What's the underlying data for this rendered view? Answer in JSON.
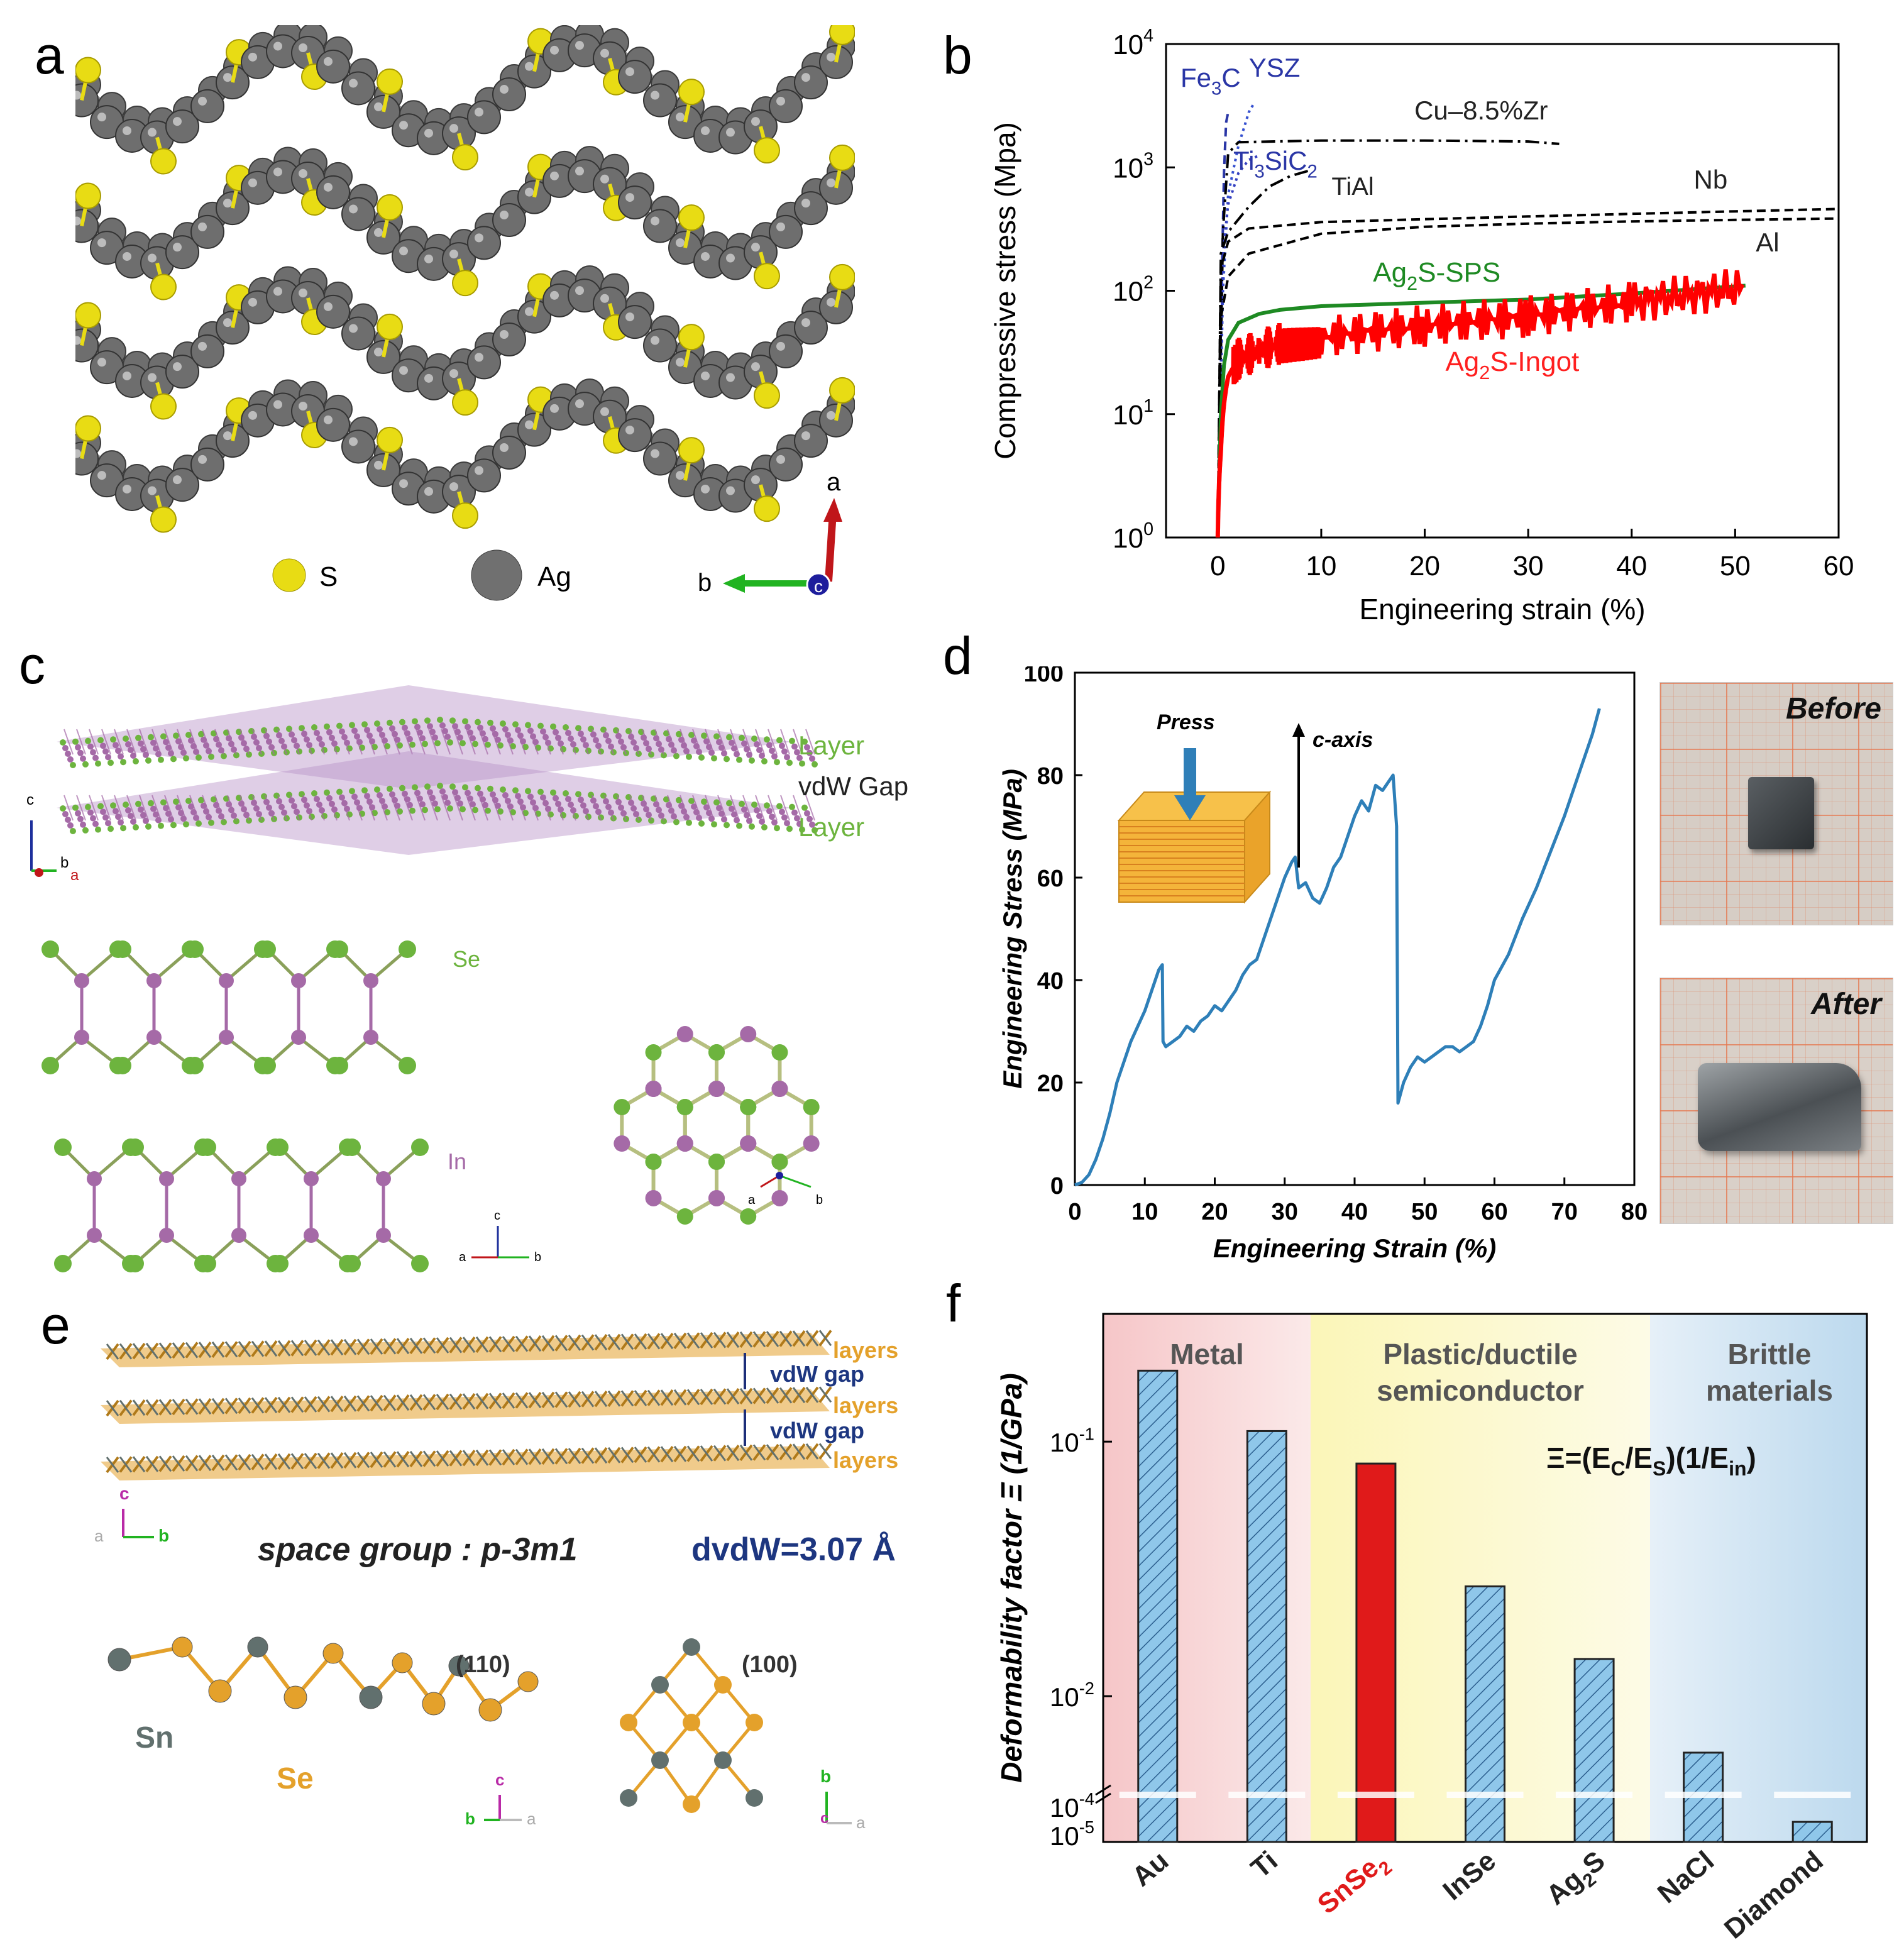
{
  "panels": {
    "a": {
      "letter": "a",
      "legend": [
        "S",
        "Ag"
      ],
      "axes": [
        "a",
        "b",
        "c"
      ],
      "colors": {
        "S": "#e8dc14",
        "Ag": "#6e6e6e"
      }
    },
    "c": {
      "letter": "c",
      "labels": {
        "layer_top": "Layer",
        "gap": "vdW Gap",
        "layer_bottom": "Layer",
        "se": "Se",
        "in": "In"
      },
      "axes_top": [
        "c",
        "b",
        "a"
      ],
      "axes_side": [
        "c",
        "a",
        "b"
      ],
      "axes_hex": [
        "a",
        "b"
      ],
      "colors": {
        "Se": "#6db43e",
        "In": "#a56aa7"
      }
    },
    "e": {
      "letter": "e",
      "labels": {
        "layers": [
          "layers",
          "layers",
          "layers"
        ],
        "gaps": [
          "vdW gap",
          "vdW gap"
        ],
        "space_group": "space group : p-3m1",
        "dvdw": "dvdW=3.07 Å",
        "sn": "Sn",
        "se": "Se",
        "p110": "(110)",
        "p100": "(100)"
      },
      "axes_top": [
        "c",
        "a",
        "b"
      ],
      "axes_110": [
        "c",
        "b",
        "a"
      ],
      "axes_100": [
        "b",
        "c",
        "a"
      ],
      "colors": {
        "Sn": "#61706e",
        "Se": "#e4a12b"
      }
    },
    "d": {
      "letter": "d",
      "inset": {
        "press": "Press",
        "caxis": "c-axis"
      },
      "photos": {
        "before": "Before",
        "after": "After"
      }
    },
    "b": {
      "letter": "b"
    },
    "f": {
      "letter": "f"
    }
  },
  "chart_data": [
    {
      "id": "b",
      "type": "line",
      "xlabel": "Engineering strain (%)",
      "ylabel": "Compressive stress (Mpa)",
      "xlim": [
        -5,
        60
      ],
      "ylim_log10": [
        0,
        4
      ],
      "xticks": [
        "0",
        "10",
        "20",
        "30",
        "40",
        "50",
        "60"
      ],
      "yticks": [
        "10",
        "10",
        "10",
        "10",
        "10"
      ],
      "ytick_exponents": [
        "0",
        "1",
        "2",
        "3",
        "4"
      ],
      "series": [
        {
          "name": "Fe3C",
          "label": "Fe3C",
          "color": "#2a36a6",
          "style": "dash",
          "x": [
            0,
            0.3,
            0.6,
            0.8,
            1.0,
            1.2
          ],
          "y": [
            1,
            50,
            900,
            2300,
            2800,
            2900
          ]
        },
        {
          "name": "YSZ",
          "label": "YSZ",
          "color": "#3550d0",
          "style": "dot",
          "x": [
            0,
            0.5,
            1.0,
            2.0,
            3.0,
            3.5
          ],
          "y": [
            1,
            100,
            600,
            1500,
            2800,
            3300
          ]
        },
        {
          "name": "Cu-8.5%Zr",
          "label": "Cu–8.5%Zr",
          "color": "#000000",
          "style": "dashdot",
          "x": [
            0,
            0.5,
            1.0,
            2.0,
            10,
            20,
            30,
            33
          ],
          "y": [
            1,
            300,
            1300,
            1600,
            1650,
            1650,
            1620,
            1550
          ]
        },
        {
          "name": "Ti3SiC2",
          "label": "Ti3SiC2",
          "color": "#3540c0",
          "style": "dot",
          "x": [
            0,
            0.5,
            1,
            2,
            3,
            4
          ],
          "y": [
            1,
            200,
            500,
            900,
            1150,
            1250
          ]
        },
        {
          "name": "TiAl",
          "label": "TiAl",
          "color": "#000000",
          "style": "dashdot",
          "x": [
            0,
            0.3,
            1,
            3,
            5,
            7,
            9
          ],
          "y": [
            1,
            200,
            300,
            480,
            700,
            850,
            950
          ]
        },
        {
          "name": "Nb",
          "label": "Nb",
          "color": "#000000",
          "style": "dash",
          "x": [
            0,
            0.3,
            1,
            3,
            10,
            20,
            30,
            40,
            50,
            60
          ],
          "y": [
            1,
            150,
            250,
            320,
            360,
            380,
            400,
            420,
            440,
            460
          ]
        },
        {
          "name": "Al",
          "label": "Al",
          "color": "#000000",
          "style": "dash",
          "x": [
            0,
            0.3,
            1,
            3,
            10,
            20,
            30,
            40,
            50,
            60
          ],
          "y": [
            1,
            60,
            130,
            200,
            290,
            330,
            350,
            365,
            375,
            385
          ]
        },
        {
          "name": "Ag2S-SPS",
          "label": "Ag2S-SPS",
          "color": "#1e8a23",
          "style": "solid",
          "x": [
            0,
            0.3,
            0.6,
            1.0,
            2,
            4,
            6,
            10,
            20,
            30,
            40,
            51
          ],
          "y": [
            1,
            10,
            25,
            40,
            55,
            65,
            70,
            75,
            80,
            85,
            95,
            110
          ]
        },
        {
          "name": "Ag2S-Ingot",
          "label": "Ag2S-Ingot",
          "color": "#ff0000",
          "style": "noisy",
          "x": [
            0,
            0.3,
            0.6,
            1.0,
            2,
            4,
            6,
            10,
            20,
            30,
            40,
            51
          ],
          "y": [
            1,
            5,
            12,
            20,
            28,
            33,
            37,
            42,
            52,
            62,
            80,
            105
          ]
        }
      ]
    },
    {
      "id": "d",
      "type": "line",
      "xlabel": "Engineering Strain (%)",
      "ylabel": "Engineering Stress (MPa)",
      "xlim": [
        0,
        80
      ],
      "ylim": [
        0,
        100
      ],
      "xticks": [
        "0",
        "10",
        "20",
        "30",
        "40",
        "50",
        "60",
        "70",
        "80"
      ],
      "yticks": [
        "0",
        "20",
        "40",
        "60",
        "80",
        "100"
      ],
      "series": [
        {
          "name": "SnSe2 stress-strain",
          "color": "#2e7fb8",
          "x": [
            0,
            1,
            2,
            3,
            4,
            5,
            6,
            8,
            10,
            11,
            12,
            12.5,
            12.6,
            13,
            14,
            15,
            16,
            17,
            18,
            19,
            20,
            21,
            22,
            23,
            24,
            25,
            26,
            27,
            28,
            29,
            30,
            31,
            31.5,
            32,
            33,
            34,
            35,
            36,
            37,
            38,
            39,
            40,
            41,
            42,
            43,
            44,
            45,
            45.5,
            46,
            46.2,
            47,
            48,
            49,
            50,
            51,
            52,
            53,
            54,
            55,
            56,
            57,
            58,
            59,
            60,
            62,
            64,
            66,
            68,
            70,
            72,
            74,
            75
          ],
          "y": [
            0,
            0.5,
            2,
            5,
            9,
            14,
            20,
            28,
            34,
            38,
            42,
            43,
            28,
            27,
            28,
            29,
            31,
            30,
            32,
            33,
            35,
            34,
            36,
            38,
            41,
            43,
            44,
            48,
            52,
            56,
            60,
            63,
            64,
            58,
            59,
            56,
            55,
            58,
            62,
            64,
            68,
            72,
            75,
            73,
            78,
            77,
            79,
            80,
            70,
            16,
            20,
            23,
            25,
            24,
            25,
            26,
            27,
            27,
            26,
            27,
            28,
            31,
            35,
            40,
            45,
            52,
            58,
            65,
            72,
            80,
            88,
            93
          ]
        }
      ]
    },
    {
      "id": "f",
      "type": "bar",
      "xlabel": "",
      "ylabel": "Deformability factor Ξ (1/GPa)",
      "yscale": "log",
      "yticks": [
        "10",
        "10",
        "10",
        "10"
      ],
      "ytick_exponents": [
        "-1",
        "-2",
        "-4",
        "-5"
      ],
      "categories": [
        "Au",
        "Ti",
        "SnSe2",
        "InSe",
        "Ag2S",
        "NaCl",
        "Diamond"
      ],
      "category_labels": [
        "Au",
        "Ti",
        "SnSe",
        "InSe",
        "Ag",
        "NaCl",
        "Diamond"
      ],
      "category_subs": [
        "",
        "",
        "2",
        "",
        "2",
        "",
        ""
      ],
      "category_suffix": [
        "",
        "",
        "",
        "",
        "S",
        "",
        ""
      ],
      "values": [
        0.19,
        0.11,
        0.082,
        0.027,
        0.014,
        0.006,
        3e-05
      ],
      "highlight": "SnSe2",
      "regions": [
        {
          "label": "Metal",
          "color": "#f6c6c8",
          "fade": "#fbe9e9"
        },
        {
          "label": "Plastic/ductile semiconductor",
          "color": "#fbf6b8",
          "fade": "#fdfbe6"
        },
        {
          "label": "Brittle materials",
          "color": "#bcd9ee",
          "fade": "#e6f0f8"
        }
      ],
      "region_lines": [
        [
          "Metal"
        ],
        [
          "Plastic/ductile",
          "semiconductor"
        ],
        [
          "Brittle",
          "materials"
        ]
      ],
      "formula": "Ξ=(EC/ES)(1/Ein)",
      "colors": {
        "bar": "#8fc7ea",
        "highlight": "#e01a1a"
      }
    }
  ]
}
